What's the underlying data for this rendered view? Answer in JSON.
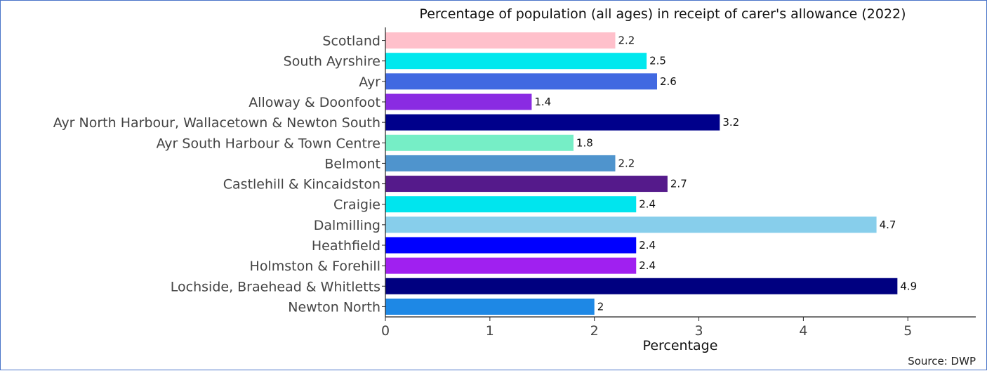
{
  "chart_data": {
    "type": "bar",
    "orientation": "horizontal",
    "title": "Percentage of population (all ages) in receipt of carer's allowance (2022)",
    "xlabel": "Percentage",
    "ylabel": "",
    "xlim": [
      0,
      5.65
    ],
    "xticks": [
      0,
      1,
      2,
      3,
      4,
      5
    ],
    "categories": [
      "Scotland",
      "South Ayrshire",
      "Ayr",
      "Alloway & Doonfoot",
      "Ayr North Harbour, Wallacetown & Newton South",
      "Ayr South Harbour & Town Centre",
      "Belmont",
      "Castlehill & Kincaidston",
      "Craigie",
      "Dalmilling",
      "Heathfield",
      "Holmston & Forehill",
      "Lochside, Braehead & Whitletts",
      "Newton North"
    ],
    "values": [
      2.2,
      2.5,
      2.6,
      1.4,
      3.2,
      1.8,
      2.2,
      2.7,
      2.4,
      4.7,
      2.4,
      2.4,
      4.9,
      2
    ],
    "value_labels": [
      "2.2",
      "2.5",
      "2.6",
      "1.4",
      "3.2",
      "1.8",
      "2.2",
      "2.7",
      "2.4",
      "4.7",
      "2.4",
      "2.4",
      "4.9",
      "2"
    ],
    "colors": [
      "#ffc0cb",
      "#00e8ee",
      "#4169e1",
      "#8a2be2",
      "#00008b",
      "#76eec6",
      "#4f94cd",
      "#551a8b",
      "#00e5ee",
      "#87ceeb",
      "#0000ff",
      "#a020f0",
      "#000080",
      "#1e88e5"
    ],
    "grid": false,
    "legend": "none"
  },
  "source": "Source: DWP"
}
